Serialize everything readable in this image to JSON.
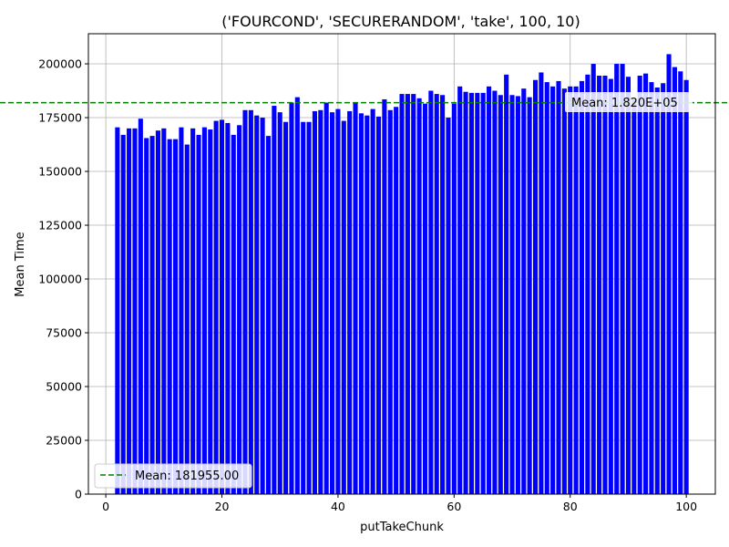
{
  "chart_data": {
    "type": "bar",
    "title": "('FOURCOND', 'SECURERANDOM', 'take', 100, 10)",
    "xlabel": "putTakeChunk",
    "ylabel": "Mean Time",
    "xlim": [
      -3,
      105
    ],
    "ylim": [
      0,
      214000
    ],
    "xticks": [
      0,
      20,
      40,
      60,
      80,
      100
    ],
    "yticks": [
      0,
      25000,
      50000,
      75000,
      100000,
      125000,
      150000,
      175000,
      200000
    ],
    "grid": true,
    "bar_color": "#0000ff",
    "x": [
      2,
      3,
      4,
      5,
      6,
      7,
      8,
      9,
      10,
      11,
      12,
      13,
      14,
      15,
      16,
      17,
      18,
      19,
      20,
      21,
      22,
      23,
      24,
      25,
      26,
      27,
      28,
      29,
      30,
      31,
      32,
      33,
      34,
      35,
      36,
      37,
      38,
      39,
      40,
      41,
      42,
      43,
      44,
      45,
      46,
      47,
      48,
      49,
      50,
      51,
      52,
      53,
      54,
      55,
      56,
      57,
      58,
      59,
      60,
      61,
      62,
      63,
      64,
      65,
      66,
      67,
      68,
      69,
      70,
      71,
      72,
      73,
      74,
      75,
      76,
      77,
      78,
      79,
      80,
      81,
      82,
      83,
      84,
      85,
      86,
      87,
      88,
      89,
      90,
      91,
      92,
      93,
      94,
      95,
      96,
      97,
      98,
      99,
      100
    ],
    "values": [
      170500,
      167000,
      170000,
      170000,
      174500,
      165500,
      166500,
      169000,
      170000,
      165000,
      165000,
      170500,
      162500,
      170000,
      167000,
      170500,
      169500,
      173500,
      174000,
      172500,
      167000,
      171500,
      178500,
      178500,
      176000,
      175000,
      166500,
      180500,
      177500,
      173000,
      182000,
      184500,
      173000,
      173000,
      178000,
      178500,
      182000,
      177500,
      179000,
      173500,
      178000,
      182000,
      177000,
      176000,
      179000,
      175500,
      183500,
      178500,
      180000,
      186000,
      186000,
      186000,
      184000,
      181500,
      187500,
      186000,
      185500,
      175000,
      181500,
      189500,
      187000,
      186500,
      186500,
      186500,
      189500,
      187500,
      185500,
      195000,
      185500,
      185000,
      188500,
      184500,
      192500,
      196000,
      191500,
      189500,
      192000,
      188500,
      189500,
      189500,
      192000,
      195000,
      200000,
      194500,
      194500,
      193000,
      200000,
      200000,
      194000,
      183500,
      194500,
      195500,
      191500,
      189000,
      191000,
      204500,
      198500,
      196500,
      192500
    ],
    "mean_line": {
      "value": 181955.0,
      "color": "#008000",
      "style": "dashed",
      "legend_label": "Mean: 181955.00",
      "annotation": "Mean: 1.820E+05"
    },
    "legend_position": "lower-left"
  }
}
